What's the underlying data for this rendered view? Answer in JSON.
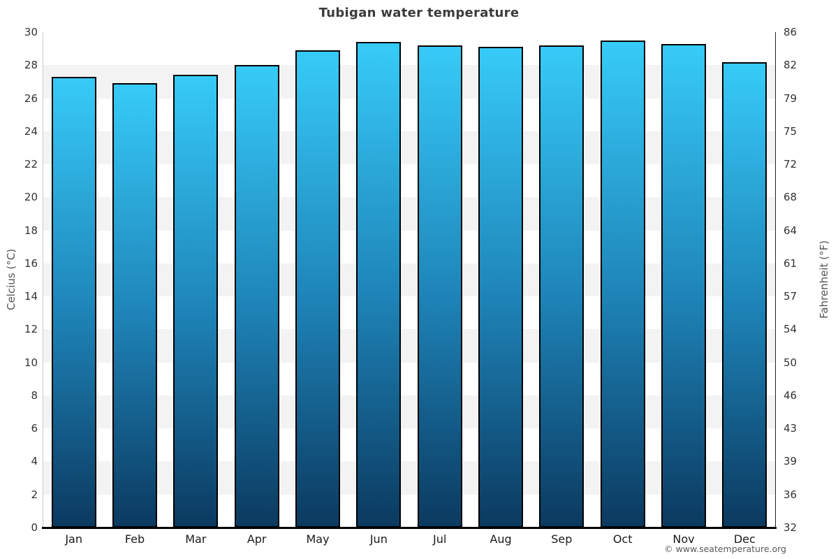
{
  "title": "Tubigan water temperature",
  "footer": {
    "credit": "© www.seatemperature.org"
  },
  "axes": {
    "left_title": "Celcius (°C)",
    "right_title": "Fahrenheit (°F)",
    "celsius_ticks": [
      30,
      28,
      26,
      24,
      22,
      20,
      18,
      16,
      14,
      12,
      10,
      8,
      6,
      4,
      2,
      0
    ],
    "fahrenheit_ticks": [
      86,
      82,
      79,
      75,
      72,
      68,
      64,
      61,
      57,
      54,
      50,
      46,
      43,
      39,
      36,
      32
    ]
  },
  "colors": {
    "bar_gradient_top": "#37cbf8",
    "bar_gradient_mid": "#1e84b8",
    "bar_gradient_bottom": "#0b3a60",
    "bar_border": "#000000",
    "band_light": "#ffffff",
    "band_shade": "#f3f3f3",
    "left_axis_line": "#c9c9c9",
    "right_axis_line": "#222222",
    "baseline": "#000000",
    "title_text": "#3b3b3b"
  },
  "chart_data": {
    "type": "bar",
    "title": "Tubigan water temperature",
    "categories": [
      "Jan",
      "Feb",
      "Mar",
      "Apr",
      "May",
      "Jun",
      "Jul",
      "Aug",
      "Sep",
      "Oct",
      "Nov",
      "Dec"
    ],
    "series": [
      {
        "name": "Water temperature",
        "unit": "°C",
        "values": [
          27.3,
          26.9,
          27.4,
          28.0,
          28.9,
          29.4,
          29.2,
          29.1,
          29.2,
          29.5,
          29.3,
          28.2
        ]
      }
    ],
    "xlabel": "",
    "ylabel_left": "Celcius (°C)",
    "ylabel_right": "Fahrenheit (°F)",
    "ylim_celsius": [
      0,
      30
    ],
    "ylim_fahrenheit": [
      32,
      86
    ],
    "tick_step_celsius": 2,
    "grid": "alternating-horizontal-bands",
    "legend": "none"
  }
}
